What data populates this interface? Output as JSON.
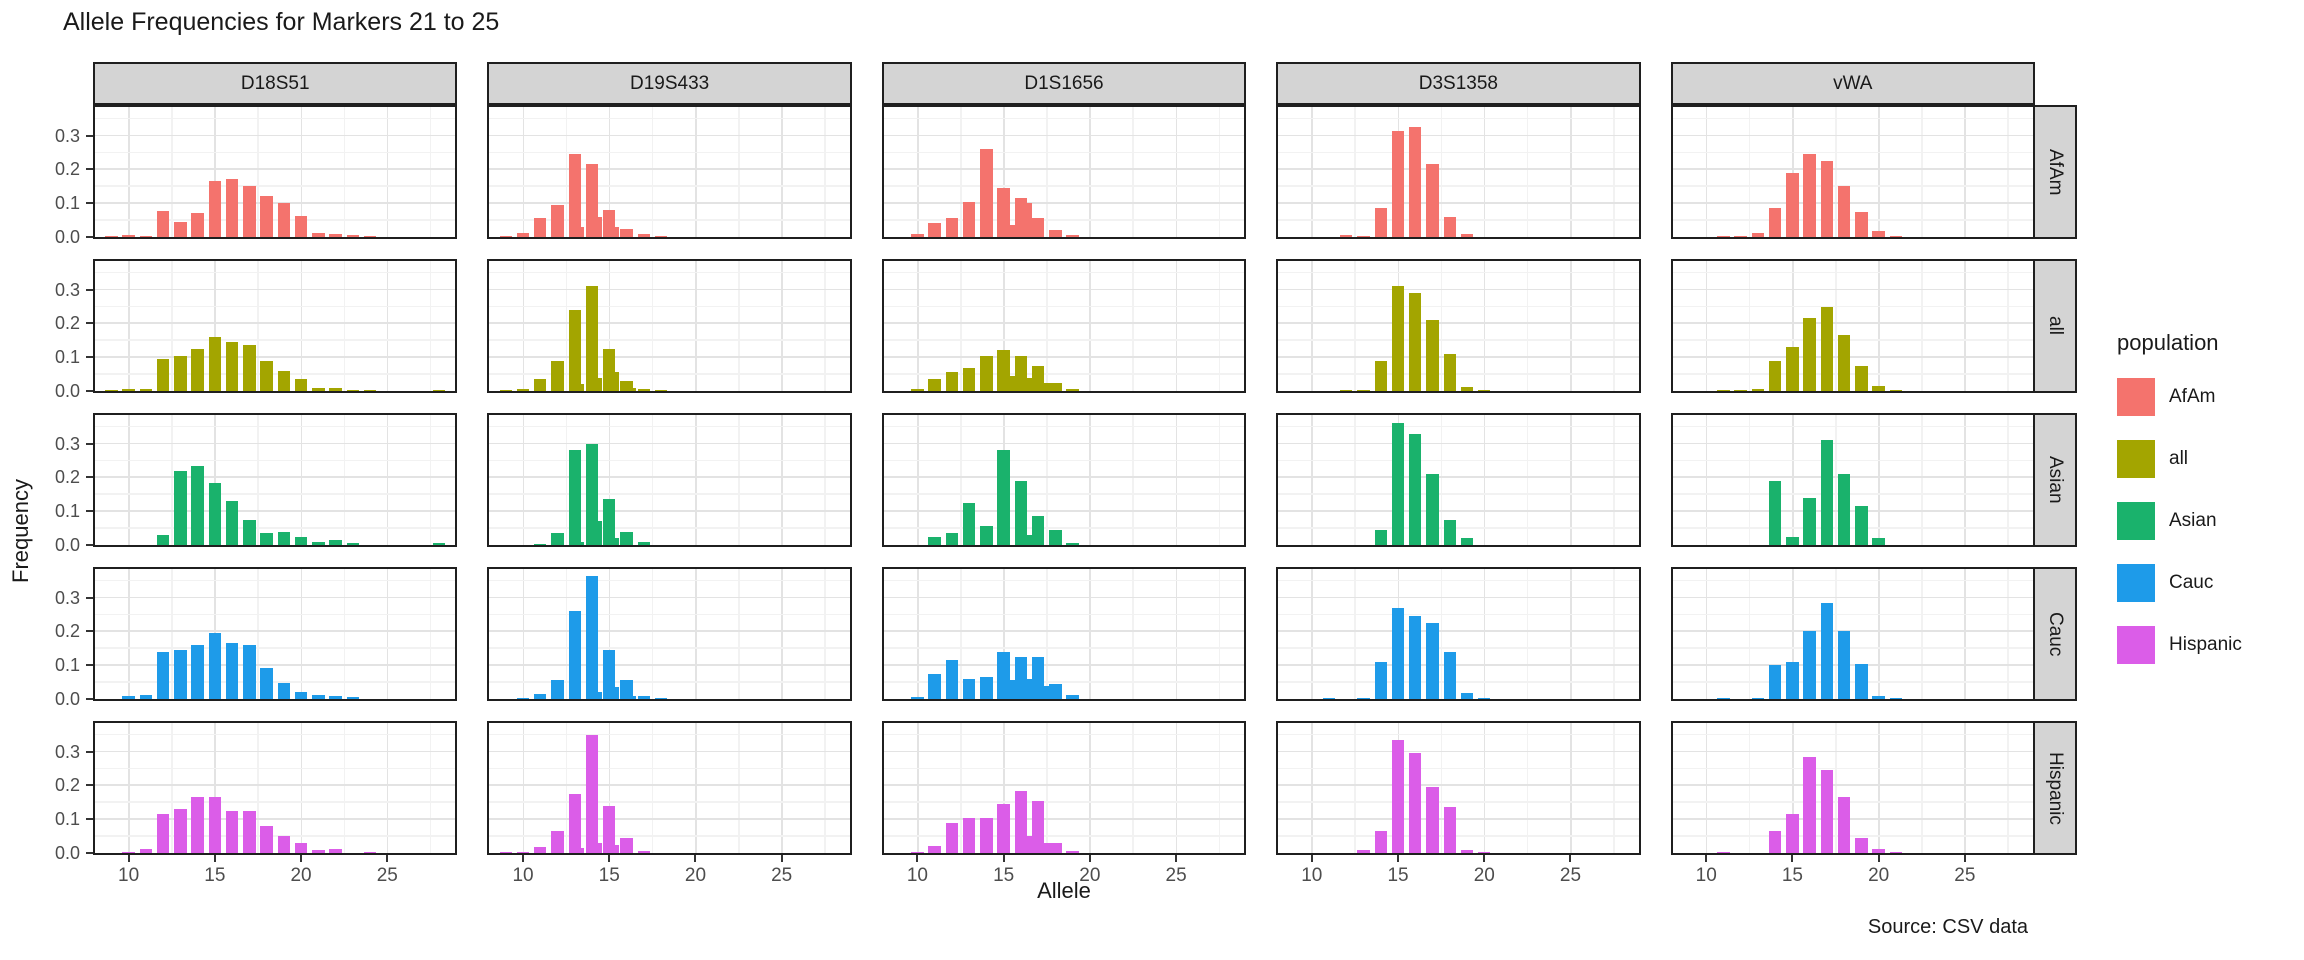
{
  "title": "Allele Frequencies for Markers 21 to 25",
  "caption": "Source: CSV data",
  "axes": {
    "x_label": "Allele",
    "y_label": "Frequency",
    "x_ticks": [
      10,
      15,
      20,
      25
    ],
    "y_ticks": [
      0.3,
      0.2,
      0.1,
      0.0
    ]
  },
  "legend": {
    "title": "population",
    "entries": [
      {
        "label": "AfAm",
        "color": "#F4736D"
      },
      {
        "label": "all",
        "color": "#A3A500"
      },
      {
        "label": "Asian",
        "color": "#1AB26C"
      },
      {
        "label": "Cauc",
        "color": "#1E9BE9"
      },
      {
        "label": "Hispanic",
        "color": "#DB5DE8"
      }
    ]
  },
  "chart_data": {
    "type": "bar",
    "title": "Allele Frequencies for Markers 21 to 25",
    "xlabel": "Allele",
    "ylabel": "Frequency",
    "caption": "Source: CSV data",
    "legend_title": "population",
    "legend_position": "right",
    "grid": "on",
    "facet_columns": [
      "D18S51",
      "D19S433",
      "D1S1656",
      "D3S1358",
      "vWA"
    ],
    "facet_rows": [
      "AfAm",
      "all",
      "Asian",
      "Cauc",
      "Hispanic"
    ],
    "x_domain": [
      8.05,
      28.95
    ],
    "y_domain": [
      0,
      0.385
    ],
    "x_major_gridlines": [
      10,
      15,
      20,
      25
    ],
    "x_minor_gridlines": [
      12.5,
      17.5,
      22.5,
      27.5
    ],
    "y_major_gridlines": [
      0.1,
      0.2,
      0.3
    ],
    "y_minor_gridlines": [
      0.05,
      0.15,
      0.25,
      0.35
    ],
    "bar_width_units": 0.72,
    "series_colors": {
      "AfAm": "#F4736D",
      "all": "#A3A500",
      "Asian": "#1AB26C",
      "Cauc": "#1E9BE9",
      "Hispanic": "#DB5DE8"
    },
    "frequencies": {
      "D18S51": {
        "AfAm": [
          [
            9,
            0.004
          ],
          [
            10,
            0.005
          ],
          [
            11,
            0.004
          ],
          [
            12,
            0.078
          ],
          [
            13,
            0.044
          ],
          [
            14,
            0.07
          ],
          [
            15,
            0.165
          ],
          [
            16,
            0.172
          ],
          [
            17,
            0.152
          ],
          [
            18,
            0.122
          ],
          [
            19,
            0.1
          ],
          [
            20,
            0.062
          ],
          [
            21,
            0.012
          ],
          [
            22,
            0.009
          ],
          [
            23,
            0.006
          ],
          [
            24,
            0.004
          ]
        ],
        "all": [
          [
            9,
            0.002
          ],
          [
            10,
            0.005
          ],
          [
            11,
            0.007
          ],
          [
            12,
            0.095
          ],
          [
            13,
            0.105
          ],
          [
            14,
            0.125
          ],
          [
            15,
            0.16
          ],
          [
            16,
            0.145
          ],
          [
            17,
            0.135
          ],
          [
            18,
            0.09
          ],
          [
            19,
            0.058
          ],
          [
            20,
            0.035
          ],
          [
            21,
            0.009
          ],
          [
            22,
            0.008
          ],
          [
            23,
            0.003
          ],
          [
            24,
            0.002
          ],
          [
            28,
            0.001
          ]
        ],
        "Asian": [
          [
            12,
            0.03
          ],
          [
            13,
            0.22
          ],
          [
            14,
            0.235
          ],
          [
            15,
            0.185
          ],
          [
            16,
            0.13
          ],
          [
            17,
            0.073
          ],
          [
            18,
            0.035
          ],
          [
            19,
            0.04
          ],
          [
            20,
            0.025
          ],
          [
            21,
            0.01
          ],
          [
            22,
            0.015
          ],
          [
            23,
            0.007
          ],
          [
            28,
            0.005
          ]
        ],
        "Cauc": [
          [
            10,
            0.01
          ],
          [
            11,
            0.012
          ],
          [
            12,
            0.138
          ],
          [
            13,
            0.145
          ],
          [
            14,
            0.16
          ],
          [
            15,
            0.195
          ],
          [
            16,
            0.165
          ],
          [
            17,
            0.16
          ],
          [
            18,
            0.092
          ],
          [
            19,
            0.048
          ],
          [
            20,
            0.02
          ],
          [
            21,
            0.012
          ],
          [
            22,
            0.008
          ],
          [
            23,
            0.005
          ]
        ],
        "Hispanic": [
          [
            10,
            0.003
          ],
          [
            11,
            0.013
          ],
          [
            12,
            0.115
          ],
          [
            13,
            0.13
          ],
          [
            14,
            0.165
          ],
          [
            15,
            0.165
          ],
          [
            16,
            0.125
          ],
          [
            17,
            0.125
          ],
          [
            18,
            0.08
          ],
          [
            19,
            0.05
          ],
          [
            20,
            0.03
          ],
          [
            21,
            0.008
          ],
          [
            22,
            0.012
          ],
          [
            24,
            0.003
          ]
        ]
      },
      "D19S433": {
        "AfAm": [
          [
            9,
            0.002
          ],
          [
            10,
            0.012
          ],
          [
            11,
            0.055
          ],
          [
            12,
            0.095
          ],
          [
            13,
            0.245
          ],
          [
            13.2,
            0.03
          ],
          [
            14,
            0.215
          ],
          [
            14.2,
            0.06
          ],
          [
            15,
            0.08
          ],
          [
            15.2,
            0.03
          ],
          [
            16,
            0.025
          ],
          [
            17,
            0.008
          ],
          [
            18,
            0.003
          ]
        ],
        "all": [
          [
            9,
            0.002
          ],
          [
            10,
            0.006
          ],
          [
            11,
            0.035
          ],
          [
            12,
            0.088
          ],
          [
            13,
            0.24
          ],
          [
            13.2,
            0.02
          ],
          [
            14,
            0.31
          ],
          [
            14.2,
            0.04
          ],
          [
            15,
            0.125
          ],
          [
            15.2,
            0.055
          ],
          [
            16,
            0.03
          ],
          [
            16.2,
            0.01
          ],
          [
            17,
            0.005
          ],
          [
            18,
            0.002
          ]
        ],
        "Asian": [
          [
            11,
            0.004
          ],
          [
            12,
            0.035
          ],
          [
            13,
            0.28
          ],
          [
            13.2,
            0.01
          ],
          [
            14,
            0.3
          ],
          [
            14.2,
            0.07
          ],
          [
            15,
            0.135
          ],
          [
            15.2,
            0.02
          ],
          [
            16,
            0.04
          ],
          [
            17,
            0.008
          ]
        ],
        "Cauc": [
          [
            10,
            0.004
          ],
          [
            11,
            0.014
          ],
          [
            12,
            0.055
          ],
          [
            13,
            0.26
          ],
          [
            14,
            0.365
          ],
          [
            14.2,
            0.02
          ],
          [
            15,
            0.145
          ],
          [
            15.2,
            0.035
          ],
          [
            16,
            0.055
          ],
          [
            16.2,
            0.01
          ],
          [
            17,
            0.008
          ],
          [
            18,
            0.002
          ]
        ],
        "Hispanic": [
          [
            9,
            0.002
          ],
          [
            10,
            0.004
          ],
          [
            11,
            0.018
          ],
          [
            12,
            0.065
          ],
          [
            13,
            0.175
          ],
          [
            13.2,
            0.015
          ],
          [
            14,
            0.35
          ],
          [
            14.2,
            0.03
          ],
          [
            15,
            0.14
          ],
          [
            15.2,
            0.025
          ],
          [
            16,
            0.045
          ],
          [
            17,
            0.005
          ]
        ]
      },
      "D1S1656": {
        "AfAm": [
          [
            10,
            0.01
          ],
          [
            11,
            0.042
          ],
          [
            12,
            0.055
          ],
          [
            13,
            0.105
          ],
          [
            14,
            0.26
          ],
          [
            15,
            0.145
          ],
          [
            15.3,
            0.035
          ],
          [
            16,
            0.115
          ],
          [
            16.3,
            0.1
          ],
          [
            17,
            0.055
          ],
          [
            18,
            0.022
          ],
          [
            19,
            0.005
          ]
        ],
        "all": [
          [
            10,
            0.006
          ],
          [
            11,
            0.035
          ],
          [
            12,
            0.055
          ],
          [
            13,
            0.068
          ],
          [
            14,
            0.105
          ],
          [
            15,
            0.12
          ],
          [
            15.3,
            0.045
          ],
          [
            16,
            0.105
          ],
          [
            16.3,
            0.04
          ],
          [
            17,
            0.075
          ],
          [
            17.3,
            0.025
          ],
          [
            18,
            0.025
          ],
          [
            19,
            0.006
          ]
        ],
        "Asian": [
          [
            11,
            0.025
          ],
          [
            12,
            0.035
          ],
          [
            13,
            0.125
          ],
          [
            14,
            0.055
          ],
          [
            15,
            0.28
          ],
          [
            16,
            0.19
          ],
          [
            16.3,
            0.03
          ],
          [
            17,
            0.085
          ],
          [
            18,
            0.045
          ],
          [
            19,
            0.006
          ]
        ],
        "Cauc": [
          [
            10,
            0.005
          ],
          [
            11,
            0.075
          ],
          [
            12,
            0.115
          ],
          [
            13,
            0.06
          ],
          [
            14,
            0.065
          ],
          [
            15,
            0.14
          ],
          [
            15.3,
            0.055
          ],
          [
            16,
            0.125
          ],
          [
            16.3,
            0.06
          ],
          [
            17,
            0.125
          ],
          [
            17.3,
            0.04
          ],
          [
            18,
            0.045
          ],
          [
            19,
            0.012
          ]
        ],
        "Hispanic": [
          [
            10,
            0.004
          ],
          [
            11,
            0.02
          ],
          [
            12,
            0.09
          ],
          [
            13,
            0.105
          ],
          [
            14,
            0.105
          ],
          [
            15,
            0.145
          ],
          [
            16,
            0.185
          ],
          [
            16.3,
            0.05
          ],
          [
            17,
            0.155
          ],
          [
            17.3,
            0.03
          ],
          [
            18,
            0.03
          ],
          [
            19,
            0.006
          ]
        ]
      },
      "D3S1358": {
        "AfAm": [
          [
            12,
            0.005
          ],
          [
            13,
            0.003
          ],
          [
            14,
            0.085
          ],
          [
            15,
            0.315
          ],
          [
            16,
            0.325
          ],
          [
            17,
            0.215
          ],
          [
            18,
            0.06
          ],
          [
            19,
            0.008
          ]
        ],
        "all": [
          [
            12,
            0.002
          ],
          [
            13,
            0.004
          ],
          [
            14,
            0.09
          ],
          [
            15,
            0.31
          ],
          [
            16,
            0.29
          ],
          [
            17,
            0.21
          ],
          [
            18,
            0.11
          ],
          [
            19,
            0.012
          ],
          [
            20,
            0.003
          ]
        ],
        "Asian": [
          [
            14,
            0.045
          ],
          [
            15,
            0.36
          ],
          [
            16,
            0.33
          ],
          [
            17,
            0.21
          ],
          [
            18,
            0.075
          ],
          [
            19,
            0.02
          ]
        ],
        "Cauc": [
          [
            11,
            0.002
          ],
          [
            13,
            0.003
          ],
          [
            14,
            0.11
          ],
          [
            15,
            0.27
          ],
          [
            16,
            0.245
          ],
          [
            17,
            0.225
          ],
          [
            18,
            0.14
          ],
          [
            19,
            0.018
          ],
          [
            20,
            0.003
          ]
        ],
        "Hispanic": [
          [
            13,
            0.01
          ],
          [
            14,
            0.065
          ],
          [
            15,
            0.335
          ],
          [
            16,
            0.295
          ],
          [
            17,
            0.195
          ],
          [
            18,
            0.135
          ],
          [
            19,
            0.008
          ],
          [
            20,
            0.003
          ]
        ]
      },
      "vWA": {
        "AfAm": [
          [
            11,
            0.003
          ],
          [
            12,
            0.003
          ],
          [
            13,
            0.012
          ],
          [
            14,
            0.085
          ],
          [
            15,
            0.19
          ],
          [
            16,
            0.245
          ],
          [
            17,
            0.225
          ],
          [
            18,
            0.15
          ],
          [
            19,
            0.075
          ],
          [
            20,
            0.018
          ],
          [
            21,
            0.003
          ]
        ],
        "all": [
          [
            11,
            0.002
          ],
          [
            12,
            0.002
          ],
          [
            13,
            0.005
          ],
          [
            14,
            0.09
          ],
          [
            15,
            0.13
          ],
          [
            16,
            0.215
          ],
          [
            17,
            0.25
          ],
          [
            18,
            0.165
          ],
          [
            19,
            0.075
          ],
          [
            20,
            0.015
          ],
          [
            21,
            0.002
          ]
        ],
        "Asian": [
          [
            14,
            0.19
          ],
          [
            15,
            0.025
          ],
          [
            16,
            0.14
          ],
          [
            17,
            0.31
          ],
          [
            18,
            0.21
          ],
          [
            19,
            0.115
          ],
          [
            20,
            0.02
          ]
        ],
        "Cauc": [
          [
            11,
            0.002
          ],
          [
            13,
            0.002
          ],
          [
            14,
            0.1
          ],
          [
            15,
            0.11
          ],
          [
            16,
            0.2
          ],
          [
            17,
            0.285
          ],
          [
            18,
            0.2
          ],
          [
            19,
            0.105
          ],
          [
            20,
            0.008
          ],
          [
            21,
            0.002
          ]
        ],
        "Hispanic": [
          [
            11,
            0.002
          ],
          [
            14,
            0.065
          ],
          [
            15,
            0.115
          ],
          [
            16,
            0.285
          ],
          [
            17,
            0.245
          ],
          [
            18,
            0.165
          ],
          [
            19,
            0.045
          ],
          [
            20,
            0.012
          ],
          [
            21,
            0.002
          ]
        ]
      }
    }
  }
}
